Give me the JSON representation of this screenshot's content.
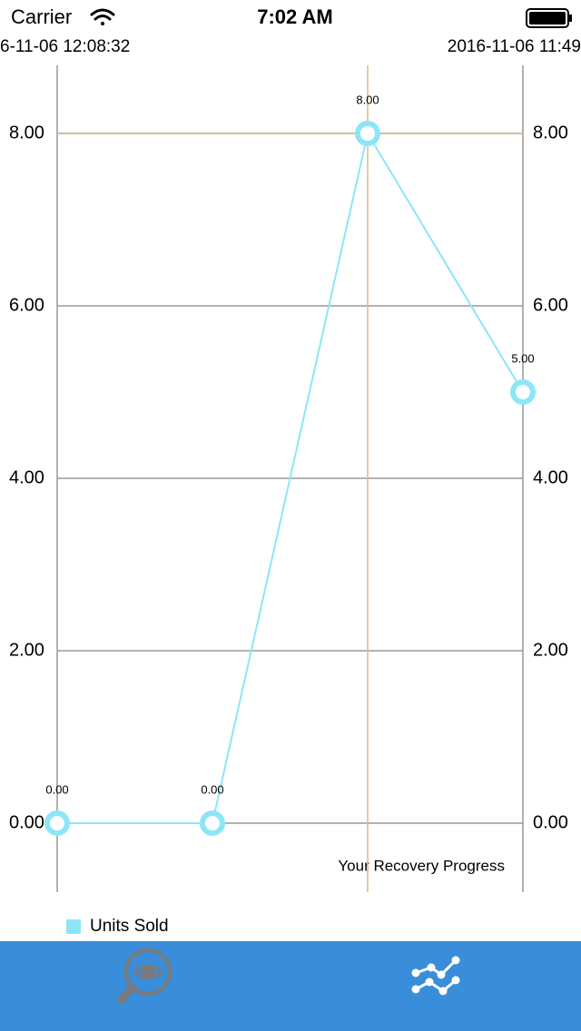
{
  "status_bar": {
    "carrier": "Carrier",
    "time": "7:02 AM"
  },
  "chart_data": {
    "type": "line",
    "description": "Your Recovery Progress",
    "categories": [
      "6-11-06 12:08:32",
      null,
      null,
      "2016-11-06 11:49"
    ],
    "series": [
      {
        "name": "Units Sold",
        "color": "#8de6f7",
        "values": [
          0,
          0,
          8,
          5
        ],
        "value_labels": [
          "0.00",
          "0.00",
          "8.00",
          "5.00"
        ]
      }
    ],
    "ylim": [
      -0.8,
      8.79
    ],
    "yticks": [
      {
        "value": 0,
        "label": "0.00"
      },
      {
        "value": 2,
        "label": "2.00"
      },
      {
        "value": 4,
        "label": "4.00"
      },
      {
        "value": 6,
        "label": "6.00"
      },
      {
        "value": 8,
        "label": "8.00"
      }
    ],
    "y2lim": [
      -0.8,
      8.79
    ],
    "y2ticks": [
      {
        "value": 0,
        "label": "0.00"
      },
      {
        "value": 2,
        "label": "2.00"
      },
      {
        "value": 4,
        "label": "4.00"
      },
      {
        "value": 6,
        "label": "6.00"
      },
      {
        "value": 8,
        "label": "8.00"
      }
    ],
    "grid": true,
    "highlight_index": 2,
    "highlight_color": "#d9b98a",
    "legend": "bottom-left"
  }
}
